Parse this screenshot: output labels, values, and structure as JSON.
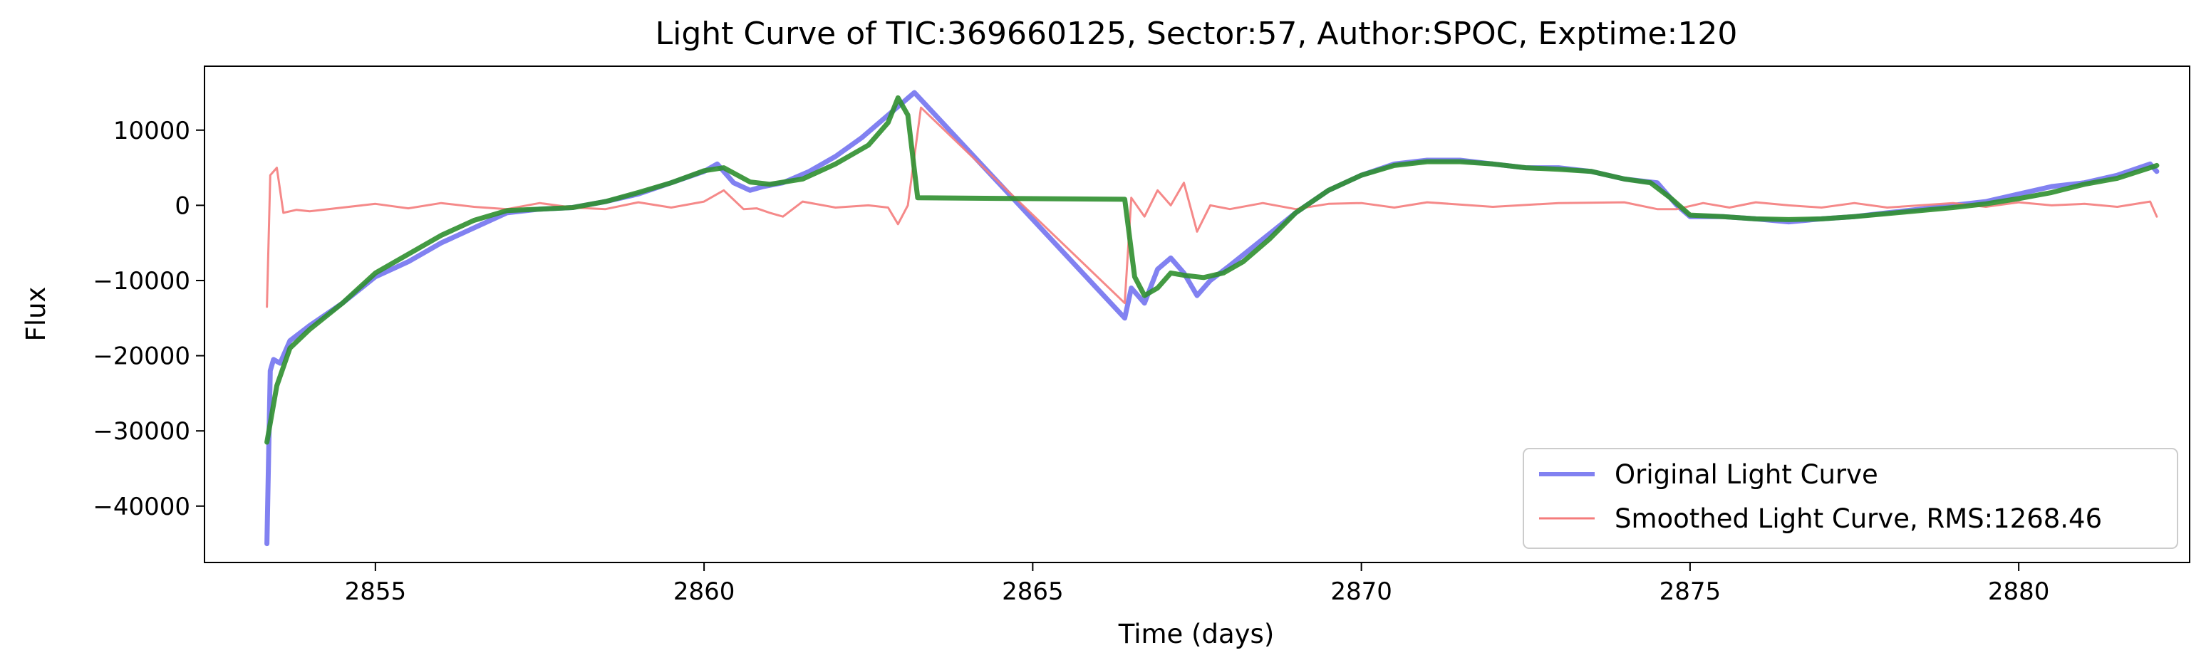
{
  "chart_data": {
    "type": "line",
    "title": "Light Curve of TIC:369660125, Sector:57, Author:SPOC, Exptime:120",
    "xlabel": "Time (days)",
    "ylabel": "Flux",
    "xlim": [
      2852.4,
      2882.6
    ],
    "ylim": [
      -47500,
      18500
    ],
    "x_ticks": [
      2855,
      2860,
      2865,
      2870,
      2875,
      2880
    ],
    "x_tick_labels": [
      "2855",
      "2860",
      "2865",
      "2870",
      "2875",
      "2880"
    ],
    "y_ticks": [
      10000,
      0,
      -10000,
      -20000,
      -30000,
      -40000
    ],
    "y_tick_labels": [
      "10000",
      "0",
      "−10000",
      "−20000",
      "−30000",
      "−40000"
    ],
    "grid": false,
    "legend_position": "lower-right",
    "colors": {
      "original": "#6b6bef",
      "smoothed": "#f47c7c",
      "trend": "#2f8f2f"
    },
    "series": [
      {
        "name": "Original Light Curve",
        "x": [
          2853.35,
          2853.4,
          2853.45,
          2853.55,
          2853.7,
          2854.0,
          2854.5,
          2855.0,
          2855.5,
          2856.0,
          2856.5,
          2857.0,
          2857.5,
          2858.0,
          2858.5,
          2859.0,
          2859.5,
          2860.0,
          2860.2,
          2860.45,
          2860.7,
          2860.9,
          2861.2,
          2861.6,
          2862.0,
          2862.4,
          2862.8,
          2863.0,
          2863.2,
          2866.4,
          2866.5,
          2866.7,
          2866.9,
          2867.1,
          2867.3,
          2867.5,
          2867.7,
          2868.0,
          2868.5,
          2869.0,
          2869.5,
          2870.0,
          2870.5,
          2871.0,
          2871.5,
          2872.0,
          2872.5,
          2873.0,
          2873.5,
          2874.0,
          2874.5,
          2874.8,
          2875.0,
          2875.5,
          2876.0,
          2876.5,
          2877.0,
          2877.5,
          2878.0,
          2878.5,
          2879.0,
          2879.5,
          2880.0,
          2880.5,
          2881.0,
          2881.5,
          2882.0,
          2882.1
        ],
        "values": [
          -45000,
          -22000,
          -20500,
          -21000,
          -18000,
          -16000,
          -13000,
          -9500,
          -7500,
          -5000,
          -3000,
          -1000,
          -500,
          -300,
          500,
          1500,
          3000,
          4500,
          5500,
          3000,
          2000,
          2500,
          3000,
          4500,
          6500,
          9000,
          12000,
          13500,
          15000,
          -15000,
          -11000,
          -13000,
          -8500,
          -7000,
          -9000,
          -12000,
          -10000,
          -8000,
          -4500,
          -1000,
          2000,
          4000,
          5500,
          6000,
          6000,
          5500,
          5000,
          5000,
          4500,
          3500,
          3000,
          0,
          -1500,
          -1500,
          -1800,
          -2200,
          -1800,
          -1500,
          -1000,
          -500,
          0,
          500,
          1500,
          2500,
          3000,
          4000,
          5500,
          4500
        ]
      },
      {
        "name": "Smoothed Light Curve, RMS:1268.46",
        "x": [
          2853.35,
          2853.4,
          2853.5,
          2853.6,
          2853.8,
          2854.0,
          2854.5,
          2855.0,
          2855.5,
          2856.0,
          2856.5,
          2857.0,
          2857.5,
          2858.0,
          2858.5,
          2859.0,
          2859.5,
          2860.0,
          2860.3,
          2860.6,
          2860.8,
          2861.0,
          2861.2,
          2861.5,
          2862.0,
          2862.5,
          2862.8,
          2862.95,
          2863.1,
          2863.3,
          2866.4,
          2866.5,
          2866.7,
          2866.9,
          2867.1,
          2867.3,
          2867.5,
          2867.7,
          2868.0,
          2868.5,
          2869.0,
          2869.5,
          2870.0,
          2870.5,
          2871.0,
          2872.0,
          2873.0,
          2874.0,
          2874.5,
          2874.8,
          2875.2,
          2875.6,
          2876.0,
          2876.5,
          2877.0,
          2877.5,
          2878.0,
          2878.5,
          2879.0,
          2879.5,
          2880.0,
          2880.5,
          2881.0,
          2881.5,
          2882.0,
          2882.1
        ],
        "values": [
          -13500,
          4000,
          5000,
          -1000,
          -600,
          -800,
          -300,
          200,
          -400,
          300,
          -200,
          -500,
          300,
          -300,
          -500,
          400,
          -300,
          500,
          2000,
          -500,
          -400,
          -1000,
          -1500,
          500,
          -300,
          0,
          -300,
          -2500,
          0,
          13000,
          -13000,
          1000,
          -1500,
          2000,
          0,
          3000,
          -3500,
          0,
          -500,
          300,
          -500,
          200,
          300,
          -300,
          400,
          -200,
          300,
          400,
          -500,
          -500,
          300,
          -300,
          400,
          0,
          -300,
          300,
          -300,
          0,
          300,
          -200,
          400,
          0,
          200,
          -200,
          500,
          -1500
        ]
      },
      {
        "name": "",
        "x": [
          2853.35,
          2853.5,
          2853.7,
          2854.0,
          2854.5,
          2855.0,
          2855.5,
          2856.0,
          2856.5,
          2857.0,
          2857.5,
          2858.0,
          2858.5,
          2859.0,
          2859.5,
          2860.0,
          2860.3,
          2860.7,
          2861.0,
          2861.5,
          2862.0,
          2862.5,
          2862.8,
          2862.95,
          2863.1,
          2863.25,
          2866.4,
          2866.55,
          2866.7,
          2866.9,
          2867.1,
          2867.3,
          2867.6,
          2867.9,
          2868.2,
          2868.6,
          2869.0,
          2869.5,
          2870.0,
          2870.5,
          2871.0,
          2871.5,
          2872.0,
          2872.5,
          2873.0,
          2873.5,
          2874.0,
          2874.4,
          2874.7,
          2875.0,
          2875.5,
          2876.0,
          2876.5,
          2877.0,
          2877.5,
          2878.0,
          2878.5,
          2879.0,
          2879.5,
          2880.0,
          2880.5,
          2881.0,
          2881.5,
          2882.0,
          2882.1
        ],
        "values": [
          -31500,
          -24000,
          -19000,
          -16500,
          -13000,
          -9000,
          -6500,
          -4000,
          -2000,
          -700,
          -500,
          -300,
          500,
          1700,
          3000,
          4600,
          5000,
          3100,
          2800,
          3500,
          5500,
          8000,
          11000,
          14300,
          12000,
          1000,
          800,
          -9500,
          -12000,
          -11000,
          -9000,
          -9300,
          -9600,
          -9000,
          -7500,
          -4500,
          -1000,
          2000,
          4000,
          5300,
          5800,
          5800,
          5500,
          5000,
          4800,
          4500,
          3500,
          3000,
          1000,
          -1300,
          -1500,
          -1800,
          -1900,
          -1800,
          -1500,
          -1100,
          -700,
          -300,
          200,
          900,
          1700,
          2800,
          3600,
          5000,
          5300
        ]
      }
    ]
  }
}
